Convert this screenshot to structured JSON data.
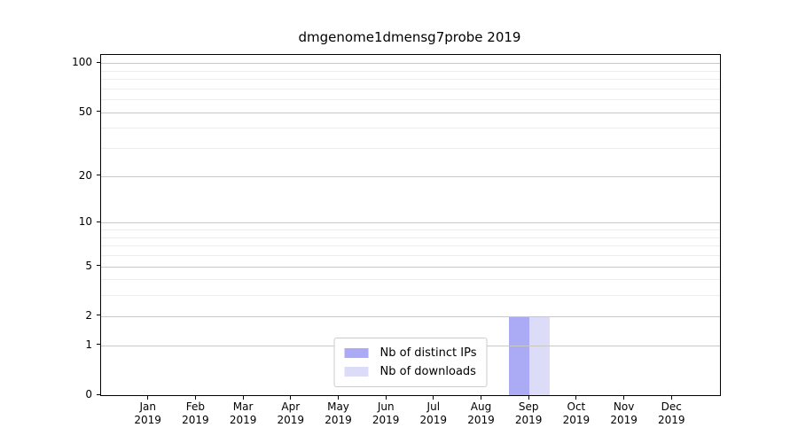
{
  "chart_data": {
    "type": "bar",
    "title": "dmgenome1dmensg7probe 2019",
    "categories": [
      "Jan",
      "Feb",
      "Mar",
      "Apr",
      "May",
      "Jun",
      "Jul",
      "Aug",
      "Sep",
      "Oct",
      "Nov",
      "Dec"
    ],
    "year_label": "2019",
    "series": [
      {
        "name": "Nb of distinct IPs",
        "color": "#aaaaf5",
        "values": [
          0,
          0,
          0,
          0,
          0,
          0,
          0,
          0,
          2,
          0,
          0,
          0
        ]
      },
      {
        "name": "Nb of downloads",
        "color": "#dcdcf8",
        "values": [
          0,
          0,
          0,
          0,
          0,
          0,
          0,
          0,
          2,
          0,
          0,
          0
        ]
      }
    ],
    "yscale": "log1p",
    "ylim": [
      0,
      112
    ],
    "yticks": [
      0,
      1,
      2,
      5,
      10,
      20,
      50,
      100
    ],
    "yminor": [
      3,
      4,
      6,
      7,
      8,
      9,
      30,
      40,
      60,
      70,
      80,
      90
    ],
    "grid": "horizontal",
    "legend_position": "lower center",
    "colors": {
      "grid_major": "#c8c8c8",
      "grid_minor": "#ededed",
      "spine": "#000000",
      "legend_border": "#cccccc",
      "background": "#ffffff"
    }
  }
}
